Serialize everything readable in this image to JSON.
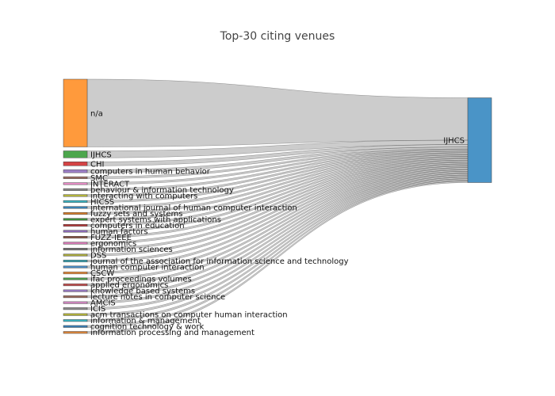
{
  "chart_data": {
    "type": "sankey",
    "title": "Top-30 citing venues",
    "target": {
      "name": "IJHCS",
      "color": "#4a94c7"
    },
    "sources": [
      {
        "name": "n/a",
        "value": 68,
        "color": "#ff9a3c"
      },
      {
        "name": "IJHCS",
        "value": 7,
        "color": "#4ca64c"
      },
      {
        "name": "CHI",
        "value": 4,
        "color": "#d44344"
      },
      {
        "name": "computers in human behavior",
        "value": 3,
        "color": "#9d7fc7"
      },
      {
        "name": "SMC",
        "value": 2,
        "color": "#9a6a5e"
      },
      {
        "name": "INTERACT",
        "value": 2,
        "color": "#e98ec8"
      },
      {
        "name": "behaviour & information technology",
        "value": 2,
        "color": "#888888"
      },
      {
        "name": "interacting with computers",
        "value": 2,
        "color": "#b5b63a"
      },
      {
        "name": "HICSS",
        "value": 2,
        "color": "#3ab6c4"
      },
      {
        "name": "international journal of human computer interaction",
        "value": 2,
        "color": "#3a82b4"
      },
      {
        "name": "fuzzy sets and systems",
        "value": 2,
        "color": "#d97f2c"
      },
      {
        "name": "expert systems with applications",
        "value": 2,
        "color": "#3c8c3c"
      },
      {
        "name": "computers in education",
        "value": 2,
        "color": "#b83c3c"
      },
      {
        "name": "human factors",
        "value": 2,
        "color": "#8a6ab4"
      },
      {
        "name": "FUZZ-IEEE",
        "value": 2,
        "color": "#8c5a4a"
      },
      {
        "name": "ergonomics",
        "value": 2,
        "color": "#d47ab4"
      },
      {
        "name": "information sciences",
        "value": 2,
        "color": "#777777"
      },
      {
        "name": "DSS",
        "value": 2,
        "color": "#a8a83c"
      },
      {
        "name": "journal of the association for information science and technology",
        "value": 2,
        "color": "#3aa6b4"
      },
      {
        "name": "human computer interaction",
        "value": 2,
        "color": "#4a8cc4"
      },
      {
        "name": "CSCW",
        "value": 2,
        "color": "#e88a3a"
      },
      {
        "name": "ifac proceedings volumes",
        "value": 2,
        "color": "#4c9c4c"
      },
      {
        "name": "applied ergonomics",
        "value": 2,
        "color": "#c44c4c"
      },
      {
        "name": "knowledge based systems",
        "value": 2,
        "color": "#9a7ac4"
      },
      {
        "name": "lecture notes in computer science",
        "value": 2,
        "color": "#9a6a5a"
      },
      {
        "name": "AMCIS",
        "value": 2,
        "color": "#d48ac4"
      },
      {
        "name": "ICIS",
        "value": 2,
        "color": "#8a8a8a"
      },
      {
        "name": "acm transactions on computer human interaction",
        "value": 2,
        "color": "#b4b43a"
      },
      {
        "name": "information & management",
        "value": 2,
        "color": "#3ab4c4"
      },
      {
        "name": "cognition technology & work",
        "value": 2,
        "color": "#3a7cb4"
      },
      {
        "name": "information processing and management",
        "value": 2,
        "color": "#e0883a"
      }
    ]
  }
}
